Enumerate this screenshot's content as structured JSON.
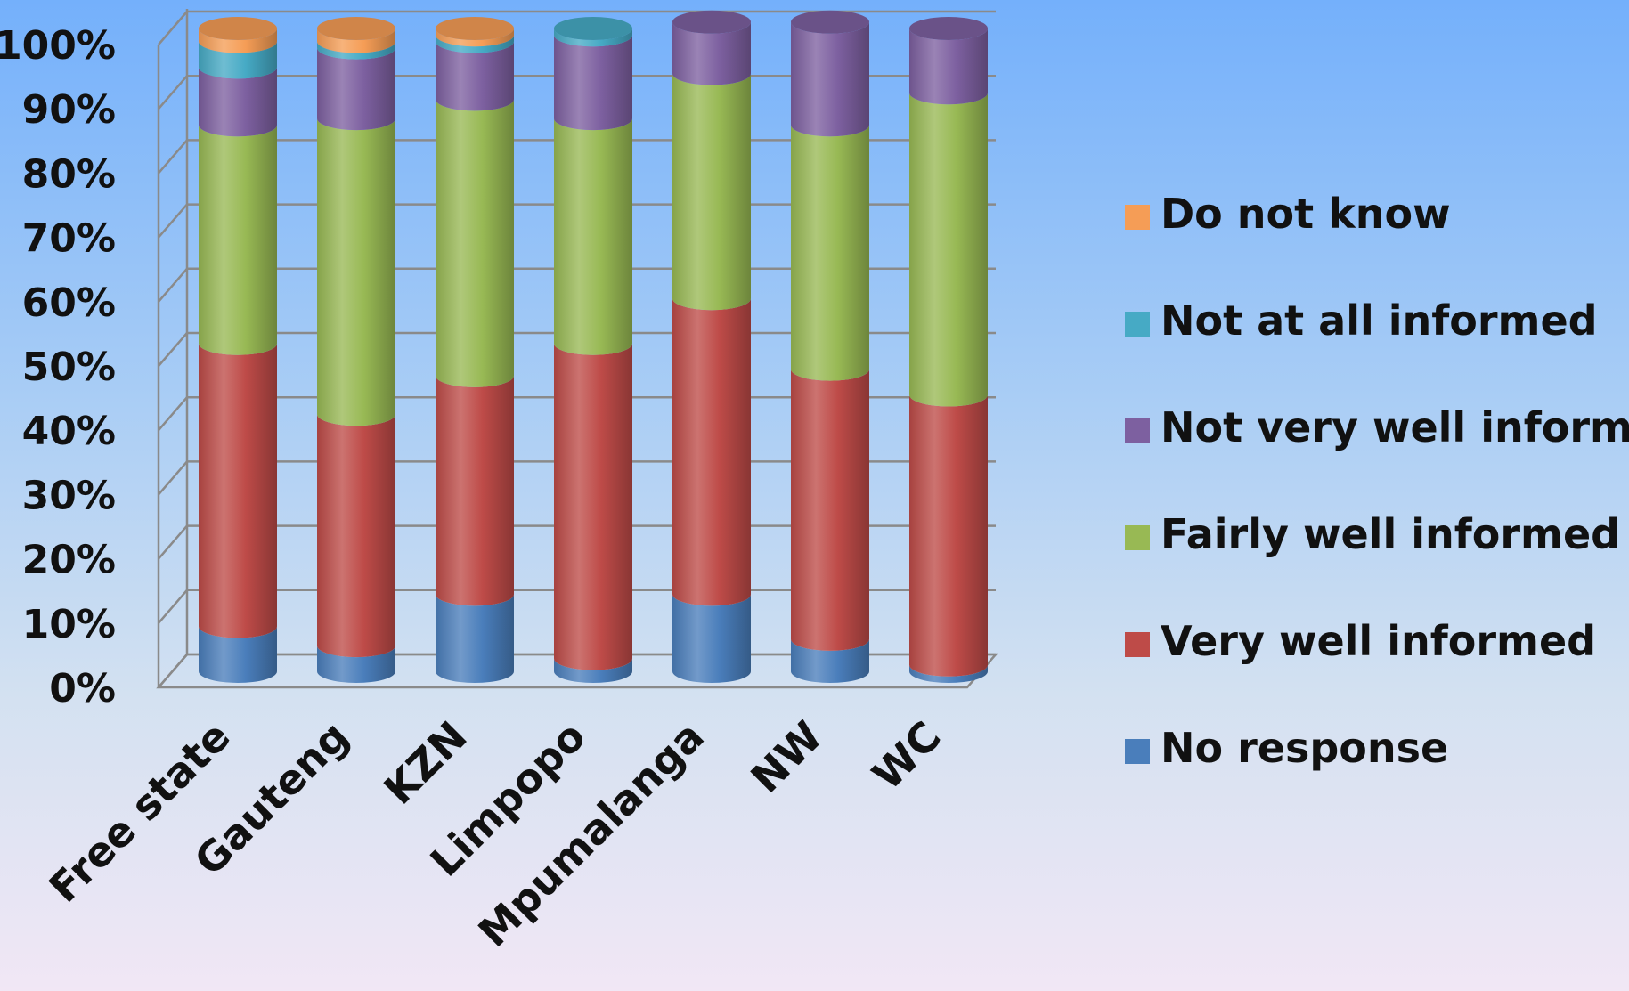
{
  "chart_data": {
    "type": "bar",
    "stacked": true,
    "three_d": true,
    "categories": [
      "Free state",
      "Gauteng",
      "KZN",
      "Limpopo",
      "Mpumalanga",
      "NW",
      "WC"
    ],
    "series": [
      {
        "name": "No response",
        "color": "#4a7ebb",
        "values": [
          7,
          4,
          12,
          2,
          12,
          5,
          1
        ]
      },
      {
        "name": "Very well informed",
        "color": "#be4b48",
        "values": [
          44,
          36,
          34,
          49,
          46,
          42,
          42
        ]
      },
      {
        "name": "Fairly well informed",
        "color": "#98b954",
        "values": [
          34,
          46,
          43,
          35,
          35,
          38,
          47
        ]
      },
      {
        "name": "Not very well informed",
        "color": "#7d60a0",
        "values": [
          9,
          11,
          9,
          13,
          8,
          16,
          10
        ]
      },
      {
        "name": "Not at all informed",
        "color": "#46aac5",
        "values": [
          4,
          1,
          1,
          1,
          0,
          0,
          0
        ]
      },
      {
        "name": "Do not know",
        "color": "#f59d56",
        "values": [
          2,
          2,
          1,
          0,
          0,
          0,
          0
        ]
      }
    ],
    "yticks": [
      "0%",
      "10%",
      "20%",
      "30%",
      "40%",
      "50%",
      "60%",
      "70%",
      "80%",
      "90%",
      "100%"
    ],
    "ylim": [
      0,
      100
    ],
    "legend_position": "right",
    "legend_order": [
      "Do not know",
      "Not at all informed",
      "Not very well informed",
      "Fairly well informed",
      "Very well informed",
      "No response"
    ],
    "grid": true
  }
}
